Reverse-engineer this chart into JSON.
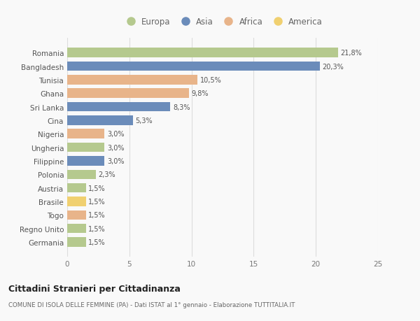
{
  "categories": [
    "Romania",
    "Bangladesh",
    "Tunisia",
    "Ghana",
    "Sri Lanka",
    "Cina",
    "Nigeria",
    "Ungheria",
    "Filippine",
    "Polonia",
    "Austria",
    "Brasile",
    "Togo",
    "Regno Unito",
    "Germania"
  ],
  "values": [
    21.8,
    20.3,
    10.5,
    9.8,
    8.3,
    5.3,
    3.0,
    3.0,
    3.0,
    2.3,
    1.5,
    1.5,
    1.5,
    1.5,
    1.5
  ],
  "labels": [
    "21,8%",
    "20,3%",
    "10,5%",
    "9,8%",
    "8,3%",
    "5,3%",
    "3,0%",
    "3,0%",
    "3,0%",
    "2,3%",
    "1,5%",
    "1,5%",
    "1,5%",
    "1,5%",
    "1,5%"
  ],
  "colors": [
    "#b5c98e",
    "#6b8cba",
    "#e8b48a",
    "#e8b48a",
    "#6b8cba",
    "#6b8cba",
    "#e8b48a",
    "#b5c98e",
    "#6b8cba",
    "#b5c98e",
    "#b5c98e",
    "#f0d070",
    "#e8b48a",
    "#b5c98e",
    "#b5c98e"
  ],
  "legend_labels": [
    "Europa",
    "Asia",
    "Africa",
    "America"
  ],
  "legend_colors": [
    "#b5c98e",
    "#6b8cba",
    "#e8b48a",
    "#f0d070"
  ],
  "title": "Cittadini Stranieri per Cittadinanza",
  "subtitle": "COMUNE DI ISOLA DELLE FEMMINE (PA) - Dati ISTAT al 1° gennaio - Elaborazione TUTTITALIA.IT",
  "xlim": [
    0,
    25
  ],
  "xticks": [
    0,
    5,
    10,
    15,
    20,
    25
  ],
  "background_color": "#f9f9f9",
  "grid_color": "#e8e8e8"
}
